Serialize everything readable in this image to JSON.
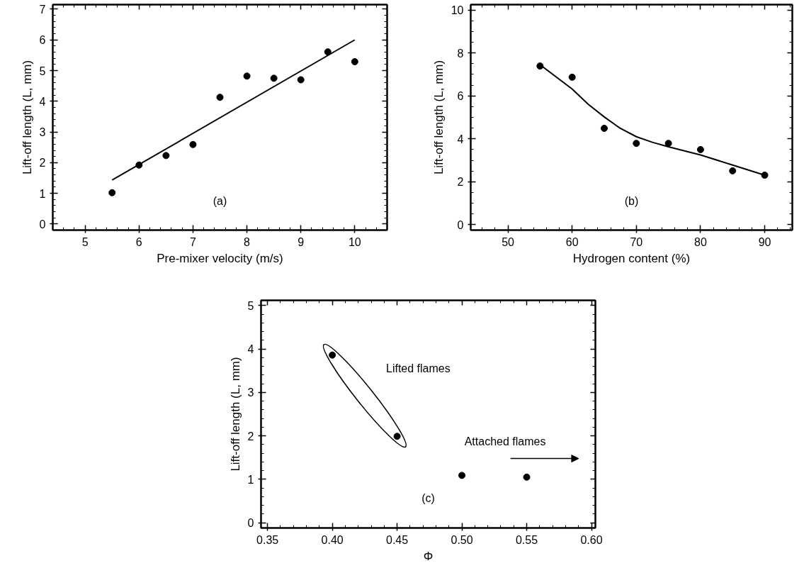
{
  "chart_data": [
    {
      "type": "scatter",
      "xlabel": "Pre-mixer velocity (m/s)",
      "ylabel": "Lift-off length (L, mm)",
      "annotations": [
        "(a)"
      ],
      "grid": false,
      "xlim": [
        4.4,
        10.6
      ],
      "ylim": [
        -0.2,
        7.15
      ],
      "xticks": [
        {
          "value": 4.6,
          "label": null
        },
        {
          "value": 4.8,
          "label": null
        },
        5,
        {
          "value": 5.2,
          "label": null
        },
        {
          "value": 5.4,
          "label": null
        },
        {
          "value": 5.6,
          "label": null
        },
        {
          "value": 5.8,
          "label": null
        },
        6,
        {
          "value": 6.2,
          "label": null
        },
        {
          "value": 6.4,
          "label": null
        },
        {
          "value": 6.6,
          "label": null
        },
        {
          "value": 6.8,
          "label": null
        },
        7,
        {
          "value": 7.2,
          "label": null
        },
        {
          "value": 7.4,
          "label": null
        },
        {
          "value": 7.6,
          "label": null
        },
        {
          "value": 7.8,
          "label": null
        },
        8,
        {
          "value": 8.2,
          "label": null
        },
        {
          "value": 8.4,
          "label": null
        },
        {
          "value": 8.6,
          "label": null
        },
        {
          "value": 8.8,
          "label": null
        },
        9,
        {
          "value": 9.2,
          "label": null
        },
        {
          "value": 9.4,
          "label": null
        },
        {
          "value": 9.6,
          "label": null
        },
        {
          "value": 9.8,
          "label": null
        },
        10,
        {
          "value": 10.2,
          "label": null
        },
        {
          "value": 10.4,
          "label": null
        }
      ],
      "yticks": [
        0,
        {
          "value": 0.2,
          "label": null
        },
        {
          "value": 0.4,
          "label": null
        },
        {
          "value": 0.6,
          "label": null
        },
        {
          "value": 0.8,
          "label": null
        },
        1,
        {
          "value": 1.2,
          "label": null
        },
        {
          "value": 1.4,
          "label": null
        },
        {
          "value": 1.6,
          "label": null
        },
        {
          "value": 1.8,
          "label": null
        },
        2,
        {
          "value": 2.2,
          "label": null
        },
        {
          "value": 2.4,
          "label": null
        },
        {
          "value": 2.6,
          "label": null
        },
        {
          "value": 2.8,
          "label": null
        },
        3,
        {
          "value": 3.2,
          "label": null
        },
        {
          "value": 3.4,
          "label": null
        },
        {
          "value": 3.6,
          "label": null
        },
        {
          "value": 3.8,
          "label": null
        },
        4,
        {
          "value": 4.2,
          "label": null
        },
        {
          "value": 4.4,
          "label": null
        },
        {
          "value": 4.6,
          "label": null
        },
        {
          "value": 4.8,
          "label": null
        },
        5,
        {
          "value": 5.2,
          "label": null
        },
        {
          "value": 5.4,
          "label": null
        },
        {
          "value": 5.6,
          "label": null
        },
        {
          "value": 5.8,
          "label": null
        },
        6,
        {
          "value": 6.2,
          "label": null
        },
        {
          "value": 6.4,
          "label": null
        },
        {
          "value": 6.6,
          "label": null
        },
        {
          "value": 6.8,
          "label": null
        },
        7
      ],
      "series": [
        {
          "marker": "circle",
          "color": "#000000",
          "x": [
            5.5,
            6,
            6.5,
            7,
            7.5,
            8,
            8.5,
            9,
            9.5,
            10
          ],
          "values": [
            1.02,
            1.92,
            2.23,
            2.59,
            4.13,
            4.82,
            4.75,
            4.7,
            5.61,
            5.29
          ]
        },
        {
          "type": "line",
          "marker": "none",
          "color": "#000000",
          "x": [
            5.5,
            10
          ],
          "values": [
            1.43,
            6.0
          ]
        }
      ]
    },
    {
      "type": "scatter",
      "xlabel": "Hydrogen content (%)",
      "ylabel": "Lift-off length (L, mm)",
      "annotations": [
        "(b)"
      ],
      "grid": false,
      "xlim": [
        44.2,
        94.3
      ],
      "ylim": [
        -0.25,
        10.25
      ],
      "xticks": [
        {
          "value": 46,
          "label": null
        },
        {
          "value": 48,
          "label": null
        },
        50,
        {
          "value": 52,
          "label": null
        },
        {
          "value": 54,
          "label": null
        },
        {
          "value": 56,
          "label": null
        },
        {
          "value": 58,
          "label": null
        },
        60,
        {
          "value": 62,
          "label": null
        },
        {
          "value": 64,
          "label": null
        },
        {
          "value": 66,
          "label": null
        },
        {
          "value": 68,
          "label": null
        },
        70,
        {
          "value": 72,
          "label": null
        },
        {
          "value": 74,
          "label": null
        },
        {
          "value": 76,
          "label": null
        },
        {
          "value": 78,
          "label": null
        },
        80,
        {
          "value": 82,
          "label": null
        },
        {
          "value": 84,
          "label": null
        },
        {
          "value": 86,
          "label": null
        },
        {
          "value": 88,
          "label": null
        },
        90,
        {
          "value": 92,
          "label": null
        },
        {
          "value": 94,
          "label": null
        }
      ],
      "yticks": [
        0,
        {
          "value": 0.5,
          "label": null
        },
        {
          "value": 1,
          "label": null
        },
        {
          "value": 1.5,
          "label": null
        },
        2,
        {
          "value": 2.5,
          "label": null
        },
        {
          "value": 3,
          "label": null
        },
        {
          "value": 3.5,
          "label": null
        },
        4,
        {
          "value": 4.5,
          "label": null
        },
        {
          "value": 5,
          "label": null
        },
        {
          "value": 5.5,
          "label": null
        },
        6,
        {
          "value": 6.5,
          "label": null
        },
        {
          "value": 7,
          "label": null
        },
        {
          "value": 7.5,
          "label": null
        },
        8,
        {
          "value": 8.5,
          "label": null
        },
        {
          "value": 9,
          "label": null
        },
        {
          "value": 9.5,
          "label": null
        },
        10
      ],
      "series": [
        {
          "marker": "circle",
          "color": "#000000",
          "x": [
            55,
            60,
            65,
            70,
            75,
            80,
            85,
            90
          ],
          "values": [
            7.39,
            6.87,
            4.49,
            3.79,
            3.79,
            3.5,
            2.51,
            2.31
          ]
        },
        {
          "type": "line",
          "marker": "none",
          "color": "#000000",
          "x": [
            55,
            60,
            62.5,
            65,
            67.5,
            70,
            72.5,
            75,
            80,
            85,
            90
          ],
          "values": [
            7.45,
            6.32,
            5.61,
            5.02,
            4.49,
            4.1,
            3.84,
            3.63,
            3.25,
            2.78,
            2.31
          ]
        }
      ]
    },
    {
      "type": "scatter",
      "xlabel": "Φ",
      "ylabel": "Lift-off length (L, mm)",
      "annotations": [
        "(c)",
        "Lifted flames",
        "Attached flames"
      ],
      "grid": false,
      "xlim": [
        0.345,
        0.603
      ],
      "ylim": [
        -0.12,
        5.12
      ],
      "xticks": [
        {
          "value": 0.35,
          "label": "0.35"
        },
        {
          "value": 0.36,
          "label": null
        },
        {
          "value": 0.37,
          "label": null
        },
        {
          "value": 0.38,
          "label": null
        },
        {
          "value": 0.39,
          "label": null
        },
        {
          "value": 0.4,
          "label": "0.40"
        },
        {
          "value": 0.41,
          "label": null
        },
        {
          "value": 0.42,
          "label": null
        },
        {
          "value": 0.43,
          "label": null
        },
        {
          "value": 0.44,
          "label": null
        },
        {
          "value": 0.45,
          "label": "0.45"
        },
        {
          "value": 0.46,
          "label": null
        },
        {
          "value": 0.47,
          "label": null
        },
        {
          "value": 0.48,
          "label": null
        },
        {
          "value": 0.49,
          "label": null
        },
        {
          "value": 0.5,
          "label": "0.50"
        },
        {
          "value": 0.51,
          "label": null
        },
        {
          "value": 0.52,
          "label": null
        },
        {
          "value": 0.53,
          "label": null
        },
        {
          "value": 0.54,
          "label": null
        },
        {
          "value": 0.55,
          "label": "0.55"
        },
        {
          "value": 0.56,
          "label": null
        },
        {
          "value": 0.57,
          "label": null
        },
        {
          "value": 0.58,
          "label": null
        },
        {
          "value": 0.59,
          "label": null
        },
        {
          "value": 0.6,
          "label": "0.60"
        }
      ],
      "yticks": [
        0,
        {
          "value": 0.2,
          "label": null
        },
        {
          "value": 0.4,
          "label": null
        },
        {
          "value": 0.6,
          "label": null
        },
        {
          "value": 0.8,
          "label": null
        },
        1,
        {
          "value": 1.2,
          "label": null
        },
        {
          "value": 1.4,
          "label": null
        },
        {
          "value": 1.6,
          "label": null
        },
        {
          "value": 1.8,
          "label": null
        },
        2,
        {
          "value": 2.2,
          "label": null
        },
        {
          "value": 2.4,
          "label": null
        },
        {
          "value": 2.6,
          "label": null
        },
        {
          "value": 2.8,
          "label": null
        },
        3,
        {
          "value": 3.2,
          "label": null
        },
        {
          "value": 3.4,
          "label": null
        },
        {
          "value": 3.6,
          "label": null
        },
        {
          "value": 3.8,
          "label": null
        },
        4,
        {
          "value": 4.2,
          "label": null
        },
        {
          "value": 4.4,
          "label": null
        },
        {
          "value": 4.6,
          "label": null
        },
        {
          "value": 4.8,
          "label": null
        },
        5
      ],
      "series": [
        {
          "marker": "circle",
          "color": "#000000",
          "x": [
            0.4,
            0.45,
            0.5,
            0.55
          ],
          "values": [
            3.86,
            1.99,
            1.09,
            1.05
          ]
        }
      ]
    }
  ]
}
